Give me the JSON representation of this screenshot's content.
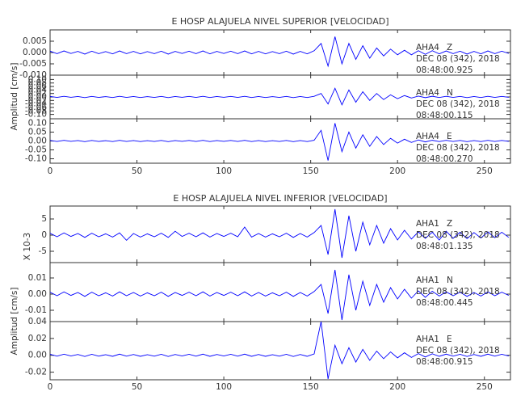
{
  "chart_data": [
    {
      "type": "line",
      "title": "E HOSP ALAJUELA NIVEL SUPERIOR [VELOCIDAD]",
      "y_label": "Amplitud [cm/s]",
      "xlim": [
        0,
        265
      ],
      "xticks": [
        0,
        50,
        100,
        150,
        200,
        250
      ],
      "color": "#0000ff",
      "x": [
        0,
        4,
        8,
        12,
        16,
        20,
        24,
        28,
        32,
        36,
        40,
        44,
        48,
        52,
        56,
        60,
        64,
        68,
        72,
        76,
        80,
        84,
        88,
        92,
        96,
        100,
        104,
        108,
        112,
        116,
        120,
        124,
        128,
        132,
        136,
        140,
        144,
        148,
        152,
        156,
        160,
        164,
        168,
        172,
        176,
        180,
        184,
        188,
        192,
        196,
        200,
        204,
        208,
        212,
        216,
        220,
        224,
        228,
        232,
        236,
        240,
        244,
        248,
        252,
        256,
        260,
        264
      ],
      "panels": [
        {
          "station": "AHA4",
          "component": "Z",
          "date": "DEC 08 (342), 2018",
          "time": "08:48:00.925",
          "ylim": [
            -0.01,
            0.01
          ],
          "yticks": [
            0.005,
            {
              "value": 0,
              "label": "0.000"
            },
            -0.005,
            {
              "value": -0.01,
              "label": "-0.010"
            }
          ],
          "values": [
            0.0006,
            -0.0005,
            0.0007,
            -0.0004,
            0.0005,
            -0.0007,
            0.0006,
            -0.0005,
            0.0004,
            -0.0006,
            0.0007,
            -0.0005,
            0.0005,
            -0.0006,
            0.0004,
            -0.0005,
            0.0006,
            -0.0007,
            0.0005,
            -0.0004,
            0.0006,
            -0.0005,
            0.0007,
            -0.0006,
            0.0005,
            -0.0004,
            0.0006,
            -0.0005,
            0.0007,
            -0.0006,
            0.0005,
            -0.0006,
            0.0004,
            -0.0005,
            0.0006,
            -0.0007,
            0.0005,
            -0.0006,
            0.0008,
            0.004,
            -0.006,
            0.007,
            -0.005,
            0.004,
            -0.003,
            0.003,
            -0.0025,
            0.002,
            -0.0015,
            0.0015,
            -0.001,
            0.001,
            -0.001,
            0.0008,
            -0.0008,
            0.0008,
            -0.0006,
            0.0007,
            -0.0005,
            0.0006,
            -0.0007,
            0.0005,
            -0.0006,
            0.0007,
            -0.0005,
            0.0006,
            -0.0004
          ]
        },
        {
          "station": "AHA4",
          "component": "N",
          "date": "DEC 08 (342), 2018",
          "time": "08:48:00.115",
          "ylim": [
            -0.125,
            0.125
          ],
          "yticks": [
            {
              "value": 0.1,
              "label": "0.10"
            },
            0.08,
            0.06,
            0.04,
            0.02,
            {
              "value": 0,
              "label": "0.00"
            },
            -0.02,
            -0.04,
            -0.06,
            -0.08,
            {
              "value": -0.1,
              "label": "-0.10"
            }
          ],
          "values": [
            0.003,
            -0.0025,
            0.0035,
            -0.002,
            0.0025,
            -0.0035,
            0.003,
            -0.0025,
            0.002,
            -0.003,
            0.0035,
            -0.0025,
            0.0025,
            -0.003,
            0.002,
            -0.0025,
            0.003,
            -0.0035,
            0.0025,
            -0.002,
            0.003,
            -0.0025,
            0.0035,
            -0.003,
            0.0025,
            -0.002,
            0.003,
            -0.0025,
            0.0035,
            -0.003,
            0.0025,
            -0.003,
            0.002,
            -0.0025,
            0.003,
            -0.0035,
            0.0025,
            -0.003,
            0.004,
            0.02,
            -0.04,
            0.05,
            -0.045,
            0.04,
            -0.03,
            0.03,
            -0.02,
            0.02,
            -0.015,
            0.012,
            -0.01,
            0.008,
            -0.006,
            0.005,
            -0.004,
            0.004,
            -0.003,
            0.0035,
            -0.0025,
            0.003,
            -0.0035,
            0.0025,
            -0.003,
            0.0035,
            -0.0025,
            0.003,
            -0.002
          ]
        },
        {
          "station": "AHA4",
          "component": "E",
          "date": "DEC 08 (342), 2018",
          "time": "08:48:00.270",
          "ylim": [
            -0.125,
            0.125
          ],
          "yticks": [
            {
              "value": 0.1,
              "label": "0.10"
            },
            0.05,
            {
              "value": 0,
              "label": "0.00"
            },
            -0.05,
            {
              "value": -0.1,
              "label": "-0.10"
            }
          ],
          "values": [
            0.003,
            -0.0025,
            0.0035,
            -0.002,
            0.0025,
            -0.0035,
            0.003,
            -0.0025,
            0.002,
            -0.003,
            0.0035,
            -0.0025,
            0.0025,
            -0.003,
            0.002,
            -0.0025,
            0.003,
            -0.0035,
            0.0025,
            -0.002,
            0.003,
            -0.0025,
            0.0035,
            -0.003,
            0.0025,
            -0.002,
            0.003,
            -0.0025,
            0.0035,
            -0.003,
            0.0025,
            -0.003,
            0.002,
            -0.0025,
            0.003,
            -0.0035,
            0.0025,
            -0.003,
            0.004,
            0.06,
            -0.11,
            0.1,
            -0.06,
            0.05,
            -0.04,
            0.035,
            -0.03,
            0.025,
            -0.02,
            0.015,
            -0.012,
            0.01,
            -0.008,
            0.006,
            -0.005,
            0.004,
            -0.003,
            0.0035,
            -0.0025,
            0.003,
            -0.0035,
            0.0025,
            -0.003,
            0.0035,
            -0.0025,
            0.003,
            -0.002
          ]
        }
      ]
    },
    {
      "type": "line",
      "title": "E HOSP ALAJUELA NIVEL INFERIOR [VELOCIDAD]",
      "y_label": "Amplitud [cm/s]",
      "multiplier": "X 10-3",
      "xlim": [
        0,
        265
      ],
      "xticks": [
        0,
        50,
        100,
        150,
        200,
        250
      ],
      "color": "#0000ff",
      "x": [
        0,
        4,
        8,
        12,
        16,
        20,
        24,
        28,
        32,
        36,
        40,
        44,
        48,
        52,
        56,
        60,
        64,
        68,
        72,
        76,
        80,
        84,
        88,
        92,
        96,
        100,
        104,
        108,
        112,
        116,
        120,
        124,
        128,
        132,
        136,
        140,
        144,
        148,
        152,
        156,
        160,
        164,
        168,
        172,
        176,
        180,
        184,
        188,
        192,
        196,
        200,
        204,
        208,
        212,
        216,
        220,
        224,
        228,
        232,
        236,
        240,
        244,
        248,
        252,
        256,
        260,
        264
      ],
      "panels": [
        {
          "station": "AHA1",
          "component": "Z",
          "date": "DEC 08 (342), 2018",
          "time": "08:48:01.135",
          "ylim": [
            -8.5,
            9
          ],
          "yticks": [
            5,
            0,
            -5
          ],
          "values": [
            0.6,
            -0.5,
            0.7,
            -0.4,
            0.5,
            -0.7,
            0.6,
            -0.5,
            0.4,
            -0.6,
            0.7,
            -1.6,
            0.5,
            -0.6,
            0.4,
            -0.5,
            0.6,
            -0.7,
            1.2,
            -0.4,
            0.6,
            -0.5,
            0.7,
            -0.6,
            0.5,
            -0.4,
            0.6,
            -0.5,
            2.5,
            -0.6,
            0.5,
            -0.6,
            0.4,
            -0.5,
            0.6,
            -0.7,
            0.5,
            -0.6,
            0.8,
            3,
            -6,
            8,
            -7,
            6,
            -5,
            4,
            -3,
            3,
            -2.5,
            2,
            -1.5,
            1.5,
            -1.2,
            1,
            -1,
            0.9,
            -1.5,
            1.2,
            -1,
            0.9,
            -1.1,
            0.8,
            -0.9,
            1,
            -0.8,
            0.9,
            -0.7
          ]
        },
        {
          "station": "AHA1",
          "component": "N",
          "date": "DEC 08 (342), 2018",
          "time": "08:48:00.445",
          "ylim": [
            -0.017,
            0.0195
          ],
          "yticks": [
            0.01,
            {
              "value": 0,
              "label": "0.00"
            },
            -0.01
          ],
          "values": [
            0.0012,
            -0.001,
            0.0014,
            -0.0008,
            0.001,
            -0.0014,
            0.0012,
            -0.001,
            0.0008,
            -0.0012,
            0.0014,
            -0.001,
            0.001,
            -0.0012,
            0.0008,
            -0.001,
            0.0012,
            -0.0014,
            0.001,
            -0.0008,
            0.0012,
            -0.001,
            0.0014,
            -0.0012,
            0.001,
            -0.0008,
            0.0012,
            -0.001,
            0.0014,
            -0.0012,
            0.001,
            -0.0012,
            0.0008,
            -0.001,
            0.0012,
            -0.0014,
            0.001,
            -0.0012,
            0.0016,
            0.006,
            -0.012,
            0.015,
            -0.016,
            0.012,
            -0.01,
            0.008,
            -0.007,
            0.006,
            -0.005,
            0.004,
            -0.003,
            0.003,
            -0.0025,
            0.002,
            -0.002,
            0.0018,
            -0.0012,
            0.0014,
            -0.001,
            0.0012,
            -0.0014,
            0.001,
            -0.0012,
            0.0014,
            -0.001,
            0.0012,
            -0.0008
          ]
        },
        {
          "station": "AHA1",
          "component": "E",
          "date": "DEC 08 (342), 2018",
          "time": "08:48:00.915",
          "ylim": [
            -0.029,
            0.04
          ],
          "yticks": [
            0.04,
            0.02,
            {
              "value": 0,
              "label": "0.00"
            },
            -0.02
          ],
          "values": [
            0.0012,
            -0.001,
            0.0014,
            -0.0008,
            0.001,
            -0.0014,
            0.0012,
            -0.001,
            0.0008,
            -0.0012,
            0.0014,
            -0.001,
            0.001,
            -0.0012,
            0.0008,
            -0.001,
            0.0012,
            -0.0014,
            0.001,
            -0.0008,
            0.0012,
            -0.001,
            0.0014,
            -0.0012,
            0.001,
            -0.0008,
            0.0012,
            -0.001,
            0.0014,
            -0.0012,
            0.001,
            -0.0012,
            0.0008,
            -0.001,
            0.0012,
            -0.0014,
            0.001,
            -0.0012,
            0.0016,
            0.04,
            -0.028,
            0.012,
            -0.01,
            0.009,
            -0.008,
            0.007,
            -0.006,
            0.005,
            -0.004,
            0.004,
            -0.003,
            0.003,
            -0.0025,
            0.002,
            -0.002,
            0.0018,
            -0.0012,
            0.0014,
            -0.001,
            0.0012,
            -0.0014,
            0.001,
            -0.0012,
            0.0014,
            -0.001,
            0.0012,
            -0.0008
          ]
        }
      ]
    }
  ]
}
